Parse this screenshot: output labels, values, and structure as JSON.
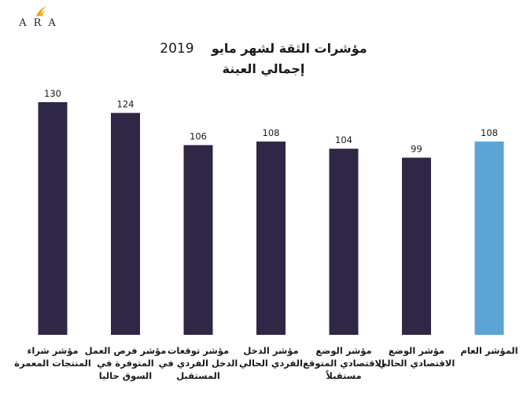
{
  "logo": {
    "text": "ARA",
    "color": "#e8a400",
    "icon": "flame-swoosh-icon"
  },
  "title": {
    "line1_text": "مؤشرات الثقة لشهر مايو",
    "line1_year": "2019",
    "line2": "إجمالي العينة"
  },
  "chart_data": {
    "type": "bar",
    "title": "مؤشرات الثقة لشهر مايو 2019 إجمالي العينة",
    "categories": [
      "مؤشر شراء المنتجات المعمرة",
      "مؤشر فرص العمل المتوفرة في السوق حاليا",
      "مؤشر توقعات الدخل الفردي في المستقبل",
      "مؤشر الدخل الفردي الحالي",
      "مؤشر الوضع الاقتصادي المتوقع مستقبلاً",
      "مؤشر الوضع الاقتصادي الحالي",
      "المؤشر العام"
    ],
    "values": [
      130,
      124,
      106,
      108,
      104,
      99,
      108
    ],
    "data_labels": [
      "130",
      "124",
      "106",
      "108",
      "104",
      "99",
      "108"
    ],
    "colors": [
      "#2e2745",
      "#2e2745",
      "#2e2745",
      "#2e2745",
      "#2e2745",
      "#2e2745",
      "#5ca4d6"
    ],
    "ylim": [
      0,
      140
    ],
    "grid": false,
    "legend": "none",
    "xlabel": "",
    "ylabel": ""
  }
}
